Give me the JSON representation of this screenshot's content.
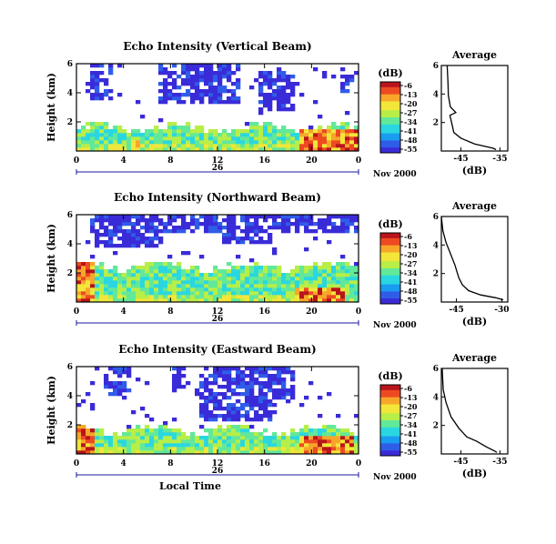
{
  "figure": {
    "xlabel": "Local Time",
    "ylabel": "Height (km)",
    "date_label": "26",
    "month_label": "Nov 2000",
    "colorbar_unit": "(dB)",
    "average_title": "Average",
    "average_xlabel": "(dB)"
  },
  "colors": {
    "colormap": [
      "#3a2bd8",
      "#2f5de8",
      "#1a9cf0",
      "#2ad7e0",
      "#62e89a",
      "#b8ee48",
      "#f2e63a",
      "#f7a62a",
      "#ee4a22",
      "#b8141c"
    ],
    "axis": "#000000",
    "date_axis": "#1a1a9e"
  },
  "chart_data": [
    {
      "type": "heatmap",
      "title": "Echo Intensity (Vertical Beam)",
      "x_range": [
        0,
        24
      ],
      "x_ticks": [
        "0",
        "4",
        "8",
        "12",
        "16",
        "20",
        "0"
      ],
      "y_range": [
        0,
        6
      ],
      "y_ticks": [
        "2",
        "4",
        "6"
      ],
      "colorbar_ticks": [
        "-6",
        "-13",
        "-20",
        "-27",
        "-34",
        "-41",
        "-48",
        "-55"
      ],
      "value_range": [
        -55,
        -6
      ],
      "clouds": [
        {
          "x": [
            1,
            3
          ],
          "y": [
            3.5,
            6
          ]
        },
        {
          "x": [
            7,
            14
          ],
          "y": [
            3.2,
            6
          ]
        },
        {
          "x": [
            15.5,
            18.5
          ],
          "y": [
            2.8,
            5.5
          ]
        },
        {
          "x": [
            22.5,
            23.5
          ],
          "y": [
            4,
            5.8
          ]
        }
      ],
      "band_top": 1.7,
      "hot_patches": [
        {
          "x": [
            19,
            24
          ],
          "y": [
            0,
            1.5
          ]
        },
        {
          "x": [
            4.5,
            5.5
          ],
          "y": [
            0,
            0.8
          ]
        }
      ]
    },
    {
      "type": "heatmap",
      "title": "Echo Intensity (Northward Beam)",
      "x_range": [
        0,
        24
      ],
      "x_ticks": [
        "0",
        "4",
        "8",
        "12",
        "16",
        "20",
        "0"
      ],
      "y_range": [
        0,
        6
      ],
      "y_ticks": [
        "2",
        "4",
        "6"
      ],
      "colorbar_ticks": [
        "-6",
        "-13",
        "-20",
        "-27",
        "-34",
        "-41",
        "-48",
        "-55"
      ],
      "value_range": [
        -55,
        -6
      ],
      "clouds": [
        {
          "x": [
            1,
            24
          ],
          "y": [
            4.8,
            6
          ]
        },
        {
          "x": [
            1.5,
            7.5
          ],
          "y": [
            3.8,
            5
          ]
        },
        {
          "x": [
            12.5,
            16.5
          ],
          "y": [
            4,
            5
          ]
        }
      ],
      "band_top": 2.6,
      "hot_patches": [
        {
          "x": [
            18.5,
            23
          ],
          "y": [
            0,
            0.9
          ]
        },
        {
          "x": [
            0,
            1.5
          ],
          "y": [
            0,
            4
          ]
        }
      ]
    },
    {
      "type": "heatmap",
      "title": "Echo Intensity (Eastward Beam)",
      "x_range": [
        0,
        24
      ],
      "x_ticks": [
        "0",
        "4",
        "8",
        "12",
        "16",
        "20",
        "0"
      ],
      "y_range": [
        0,
        6
      ],
      "y_ticks": [
        "2",
        "4",
        "6"
      ],
      "colorbar_ticks": [
        "-6",
        "-13",
        "-20",
        "-27",
        "-34",
        "-41",
        "-48",
        "-55"
      ],
      "value_range": [
        -55,
        -6
      ],
      "clouds": [
        {
          "x": [
            2.5,
            4.5
          ],
          "y": [
            4,
            6
          ]
        },
        {
          "x": [
            8,
            9.5
          ],
          "y": [
            4.5,
            6
          ]
        },
        {
          "x": [
            10.5,
            17
          ],
          "y": [
            2.3,
            6
          ]
        },
        {
          "x": [
            17,
            18.5
          ],
          "y": [
            3.5,
            6
          ]
        }
      ],
      "band_top": 1.8,
      "hot_patches": [
        {
          "x": [
            19,
            23.5
          ],
          "y": [
            0,
            1.2
          ]
        },
        {
          "x": [
            0,
            1.5
          ],
          "y": [
            0,
            3.5
          ]
        }
      ]
    },
    {
      "type": "line",
      "title": "Average",
      "xlabel": "(dB)",
      "x_ticks": [
        "-45",
        "-35"
      ],
      "x_range": [
        -50,
        -33
      ],
      "y_range": [
        0,
        6
      ],
      "y_ticks": [
        "2",
        "4",
        "6"
      ],
      "series": [
        {
          "points": [
            [
              -48.5,
              6.0
            ],
            [
              -48.3,
              4.8
            ],
            [
              -48.2,
              3.9
            ],
            [
              -47.7,
              3.1
            ],
            [
              -46.3,
              2.7
            ],
            [
              -47.8,
              2.5
            ],
            [
              -47.3,
              1.9
            ],
            [
              -46.8,
              1.3
            ],
            [
              -45.0,
              0.9
            ],
            [
              -41.5,
              0.5
            ],
            [
              -36.8,
              0.2
            ],
            [
              -36.0,
              0.1
            ]
          ]
        }
      ]
    },
    {
      "type": "line",
      "title": "Average",
      "xlabel": "(dB)",
      "x_ticks": [
        "-45",
        "-30"
      ],
      "x_range": [
        -50,
        -28
      ],
      "y_range": [
        0,
        6
      ],
      "y_ticks": [
        "2",
        "4",
        "6"
      ],
      "series": [
        {
          "points": [
            [
              -50.0,
              6.0
            ],
            [
              -49.5,
              5.0
            ],
            [
              -48.5,
              4.2
            ],
            [
              -47.0,
              3.4
            ],
            [
              -45.5,
              2.6
            ],
            [
              -44.2,
              1.7
            ],
            [
              -43.0,
              1.2
            ],
            [
              -41.0,
              0.8
            ],
            [
              -37.0,
              0.5
            ],
            [
              -32.0,
              0.3
            ],
            [
              -29.5,
              0.15
            ]
          ]
        }
      ]
    },
    {
      "type": "line",
      "title": "Average",
      "xlabel": "(dB)",
      "x_ticks": [
        "-45",
        "-35"
      ],
      "x_range": [
        -50,
        -33
      ],
      "y_range": [
        0,
        6
      ],
      "y_ticks": [
        "2",
        "4",
        "6"
      ],
      "series": [
        {
          "points": [
            [
              -49.8,
              6.0
            ],
            [
              -49.5,
              4.5
            ],
            [
              -48.8,
              3.6
            ],
            [
              -47.5,
              2.6
            ],
            [
              -45.5,
              1.8
            ],
            [
              -43.5,
              1.2
            ],
            [
              -41.0,
              0.9
            ],
            [
              -38.5,
              0.5
            ],
            [
              -36.3,
              0.2
            ],
            [
              -35.8,
              0.1
            ]
          ]
        }
      ]
    }
  ]
}
